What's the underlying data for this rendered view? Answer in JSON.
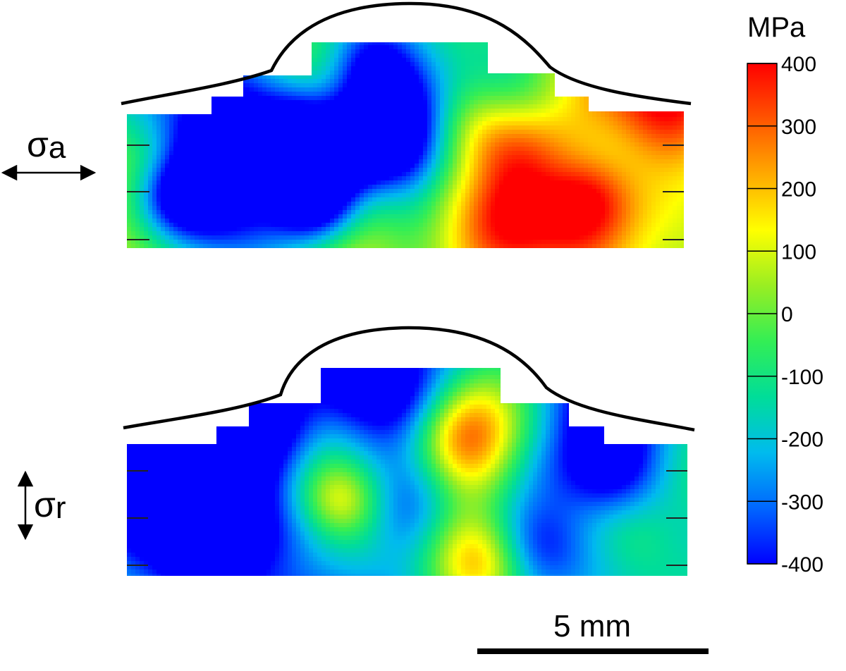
{
  "colorbar": {
    "unit": "MPa",
    "ticks": [
      "400",
      "300",
      "200",
      "100",
      "0",
      "-100",
      "-200",
      "-300",
      "-400"
    ],
    "range": [
      -400,
      400
    ],
    "colormap": [
      "#0000ff",
      "#0066ff",
      "#00bbee",
      "#00dd99",
      "#33ee55",
      "#99ee22",
      "#ffff00",
      "#ffaa00",
      "#ff5500",
      "#ff0000"
    ]
  },
  "maps": [
    {
      "id": "axial",
      "symbol": "σ",
      "subscript": "a",
      "arrow": "horizontal",
      "bias": 55,
      "seed": 11,
      "hotspots": [
        [
          0.78,
          0.7,
          380,
          0.03
        ],
        [
          0.52,
          0.75,
          -420,
          0.03
        ],
        [
          0.47,
          0.3,
          -250,
          0.05
        ],
        [
          0.1,
          0.2,
          -380,
          0.02
        ],
        [
          0.58,
          0.8,
          350,
          0.02
        ]
      ]
    },
    {
      "id": "radial",
      "symbol": "σ",
      "subscript": "r",
      "arrow": "vertical",
      "bias": -110,
      "seed": 29,
      "hotspots": [
        [
          0.53,
          0.5,
          -480,
          0.09
        ],
        [
          0.07,
          0.4,
          -350,
          0.05
        ],
        [
          0.4,
          0.85,
          -380,
          0.05
        ],
        [
          0.59,
          0.9,
          420,
          0.025
        ],
        [
          0.37,
          0.58,
          380,
          0.02
        ]
      ]
    }
  ],
  "scalebar": {
    "label": "5 mm"
  }
}
